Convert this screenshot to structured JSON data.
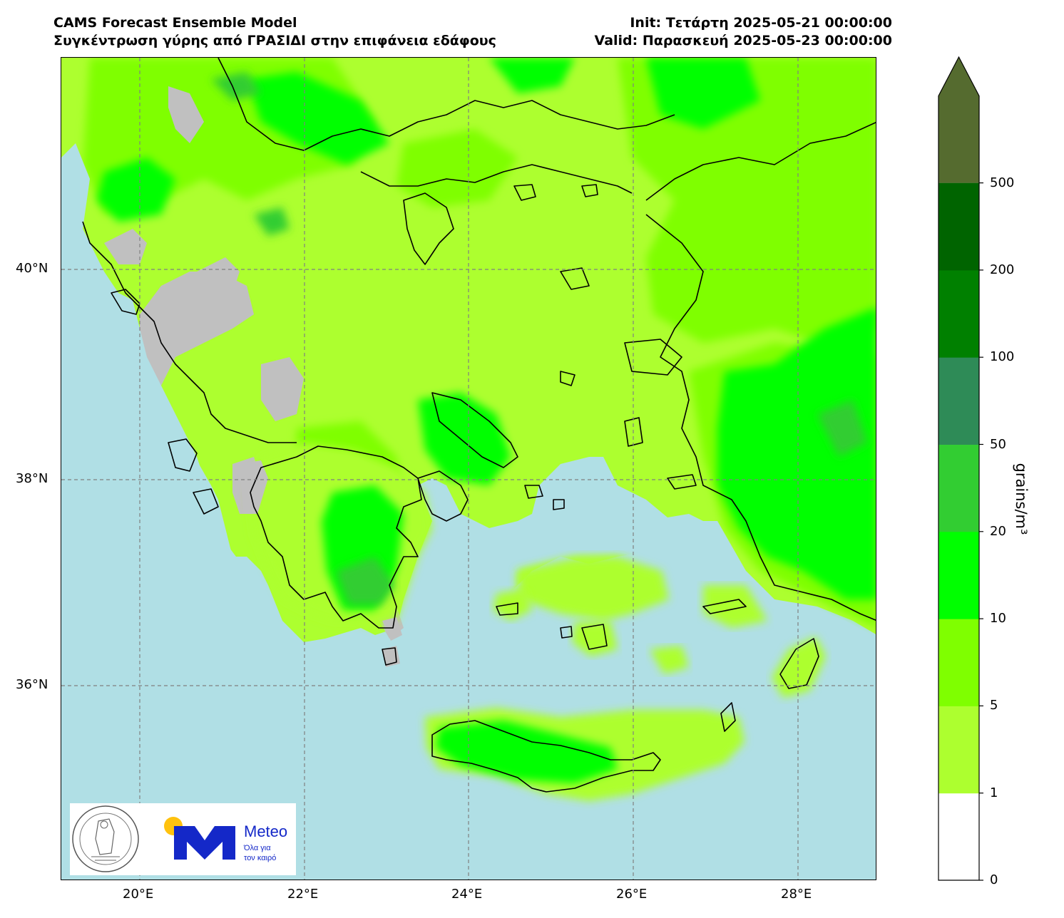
{
  "header": {
    "title_left_1": "CAMS Forecast Ensemble Model",
    "title_left_2": "Συγκέντρωση γύρης από ΓΡΑΣΙΔΙ στην επιφάνεια εδάφους",
    "title_right_1": "Init: Τετάρτη 2025-05-21 00:00:00",
    "title_right_2": "Valid: Παρασκευή 2025-05-23 00:00:00"
  },
  "map": {
    "lat_labels": [
      "40°N",
      "38°N",
      "36°N"
    ],
    "lon_labels": [
      "20°E",
      "22°E",
      "24°E",
      "26°E",
      "28°E"
    ],
    "colors": {
      "sea": "#b0dfe5",
      "no_data_land": "#c0c0c0",
      "grid": "#808080",
      "coast": "#000000"
    }
  },
  "colorbar": {
    "unit": "grains/m³",
    "ticks": [
      "0",
      "1",
      "5",
      "10",
      "20",
      "50",
      "100",
      "200",
      "500"
    ],
    "levels": [
      {
        "range": "0-1",
        "color": "#ffffff"
      },
      {
        "range": "1-5",
        "color": "#adff2f"
      },
      {
        "range": "5-10",
        "color": "#7fff00"
      },
      {
        "range": "10-20",
        "color": "#00ff00"
      },
      {
        "range": "20-50",
        "color": "#32cd32"
      },
      {
        "range": "50-100",
        "color": "#2e8b57"
      },
      {
        "range": "100-200",
        "color": "#008000"
      },
      {
        "range": "200-500",
        "color": "#006400"
      },
      {
        "range": ">500",
        "color": "#556b2f"
      }
    ]
  },
  "logos": {
    "observatory_seal": "NATIONAL OBSERVATORY OF ATHENS",
    "meteo_name": "Meteo",
    "meteo_tagline_1": "Όλα για",
    "meteo_tagline_2": "τον καιρό",
    "meteo_brand_color": "#1428c8",
    "meteo_sun_color": "#ffc20e"
  }
}
